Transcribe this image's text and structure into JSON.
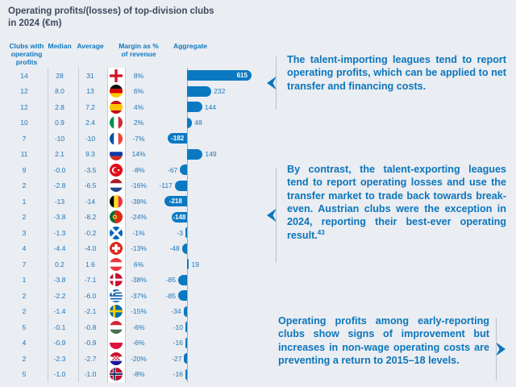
{
  "title": "Operating profits/(losses) of top-division clubs\nin 2024 (€m)",
  "table": {
    "headers": {
      "clubs": "Clubs with\noperating\nprofits",
      "median": "Median",
      "average": "Average",
      "margin": "Margin as %\nof revenue",
      "aggregate": "Aggregate"
    },
    "rows": [
      {
        "country": "England",
        "flag": "england",
        "clubs": "14",
        "median": "28",
        "average": "31",
        "margin": "8%",
        "aggregate": 615,
        "label": "615"
      },
      {
        "country": "Germany",
        "flag": "germany",
        "clubs": "12",
        "median": "8.0",
        "average": "13",
        "margin": "6%",
        "aggregate": 232,
        "label": "232"
      },
      {
        "country": "Spain",
        "flag": "spain",
        "clubs": "12",
        "median": "2.8",
        "average": "7.2",
        "margin": "4%",
        "aggregate": 144,
        "label": "144"
      },
      {
        "country": "Italy",
        "flag": "italy",
        "clubs": "10",
        "median": "0.9",
        "average": "2.4",
        "margin": "2%",
        "aggregate": 48,
        "label": "48"
      },
      {
        "country": "France",
        "flag": "france",
        "clubs": "7",
        "median": "-10",
        "average": "-10",
        "margin": "-7%",
        "aggregate": -182,
        "label": "-182"
      },
      {
        "country": "Russia",
        "flag": "russia",
        "clubs": "11",
        "median": "2.1",
        "average": "9.3",
        "margin": "14%",
        "aggregate": 149,
        "label": "149"
      },
      {
        "country": "Turkey",
        "flag": "turkey",
        "clubs": "9",
        "median": "-0.0",
        "average": "-3.5",
        "margin": "-8%",
        "aggregate": -67,
        "label": "-67"
      },
      {
        "country": "Netherlands",
        "flag": "netherlands",
        "clubs": "2",
        "median": "-2.8",
        "average": "-6.5",
        "margin": "-16%",
        "aggregate": -117,
        "label": "-117"
      },
      {
        "country": "Belgium",
        "flag": "belgium",
        "clubs": "1",
        "median": "-13",
        "average": "-14",
        "margin": "-38%",
        "aggregate": -218,
        "label": "-218"
      },
      {
        "country": "Portugal",
        "flag": "portugal",
        "clubs": "2",
        "median": "-3.8",
        "average": "-8.2",
        "margin": "-24%",
        "aggregate": -148,
        "label": "-148"
      },
      {
        "country": "Scotland",
        "flag": "scotland",
        "clubs": "3",
        "median": "-1.3",
        "average": "-0.2",
        "margin": "-1%",
        "aggregate": -3,
        "label": "-3"
      },
      {
        "country": "Switzerland",
        "flag": "switzerland",
        "clubs": "4",
        "median": "-4.4",
        "average": "-4.0",
        "margin": "-13%",
        "aggregate": -48,
        "label": "-48"
      },
      {
        "country": "Austria",
        "flag": "austria",
        "clubs": "7",
        "median": "0.2",
        "average": "1.6",
        "margin": "6%",
        "aggregate": 19,
        "label": "19"
      },
      {
        "country": "Denmark",
        "flag": "denmark",
        "clubs": "1",
        "median": "-3.8",
        "average": "-7.1",
        "margin": "-38%",
        "aggregate": -85,
        "label": "-85"
      },
      {
        "country": "Greece",
        "flag": "greece",
        "clubs": "2",
        "median": "-2.2",
        "average": "-6.0",
        "margin": "-37%",
        "aggregate": -85,
        "label": "-85"
      },
      {
        "country": "Sweden",
        "flag": "sweden",
        "clubs": "2",
        "median": "-1.4",
        "average": "-2.1",
        "margin": "-15%",
        "aggregate": -34,
        "label": "-34"
      },
      {
        "country": "Hungary",
        "flag": "hungary",
        "clubs": "5",
        "median": "-0.1",
        "average": "-0.8",
        "margin": "-6%",
        "aggregate": -10,
        "label": "-10"
      },
      {
        "country": "Poland",
        "flag": "poland",
        "clubs": "4",
        "median": "-0.9",
        "average": "-0.9",
        "margin": "-6%",
        "aggregate": -16,
        "label": "-16"
      },
      {
        "country": "Croatia",
        "flag": "croatia",
        "clubs": "2",
        "median": "-2.3",
        "average": "-2.7",
        "margin": "-20%",
        "aggregate": -27,
        "label": "-27"
      },
      {
        "country": "Norway",
        "flag": "norway",
        "clubs": "5",
        "median": "-1.0",
        "average": "-1.0",
        "margin": "-8%",
        "aggregate": -16,
        "label": "-16"
      }
    ]
  },
  "callouts": [
    {
      "text": "The talent-importing leagues tend to report operating profits, which can be applied to net transfer and financing costs.",
      "sup": "",
      "arrow": "left"
    },
    {
      "text": "By contrast, the talent-exporting leagues tend to report operating losses and use the transfer market to trade back towards break-even. Austrian clubs were the exception in 2024, reporting their best-ever operating result.",
      "sup": "43",
      "arrow": "left"
    },
    {
      "text": "Operating profits among early-reporting clubs show signs of improvement but increases in non-wage operating costs are preventing a return to 2015–18 levels.",
      "sup": "",
      "arrow": "right"
    }
  ],
  "colors": {
    "bar": "#0b79c2",
    "accent_text": "#0c76bb",
    "title_text": "#3d4a5c",
    "line": "#c6ced7",
    "background": "#eaedf2"
  },
  "chart_data": {
    "type": "bar",
    "orientation": "horizontal",
    "title": "Operating profits/(losses) of top-division clubs in 2024 (€m)",
    "categories": [
      "England",
      "Germany",
      "Spain",
      "Italy",
      "France",
      "Russia",
      "Turkey",
      "Netherlands",
      "Belgium",
      "Portugal",
      "Scotland",
      "Switzerland",
      "Austria",
      "Denmark",
      "Greece",
      "Sweden",
      "Hungary",
      "Poland",
      "Croatia",
      "Norway"
    ],
    "series": [
      {
        "name": "Clubs with operating profits",
        "values": [
          14,
          12,
          12,
          10,
          7,
          11,
          9,
          2,
          1,
          2,
          3,
          4,
          7,
          1,
          2,
          2,
          5,
          4,
          2,
          5
        ]
      },
      {
        "name": "Median",
        "values": [
          28,
          8.0,
          2.8,
          0.9,
          -10,
          2.1,
          -0.0,
          -2.8,
          -13,
          -3.8,
          -1.3,
          -4.4,
          0.2,
          -3.8,
          -2.2,
          -1.4,
          -0.1,
          -0.9,
          -2.3,
          -1.0
        ]
      },
      {
        "name": "Average",
        "values": [
          31,
          13,
          7.2,
          2.4,
          -10,
          9.3,
          -3.5,
          -6.5,
          -14,
          -8.2,
          -0.2,
          -4.0,
          1.6,
          -7.1,
          -6.0,
          -2.1,
          -0.8,
          -0.9,
          -2.7,
          -1.0
        ]
      },
      {
        "name": "Margin as % of revenue",
        "values": [
          8,
          6,
          4,
          2,
          -7,
          14,
          -8,
          -16,
          -38,
          -24,
          -1,
          -13,
          6,
          -38,
          -37,
          -15,
          -6,
          -6,
          -20,
          -8
        ]
      },
      {
        "name": "Aggregate",
        "values": [
          615,
          232,
          144,
          48,
          -182,
          149,
          -67,
          -117,
          -218,
          -148,
          -3,
          -48,
          19,
          -85,
          -85,
          -34,
          -10,
          -16,
          -27,
          -16
        ]
      }
    ],
    "plotted_series": "Aggregate",
    "xlim": [
      -260,
      640
    ],
    "legend": false,
    "grid": false
  }
}
